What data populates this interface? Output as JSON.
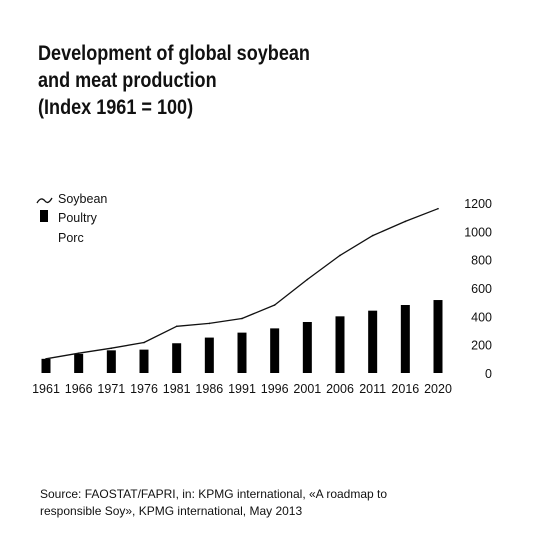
{
  "title_lines": [
    "Development of global soybean",
    "and meat production",
    "(Index 1961 = 100)"
  ],
  "source_lines": [
    "Source: FAOSTAT/FAPRI, in: KPMG international, «A roadmap to",
    "responsible Soy», KPMG international, May 2013"
  ],
  "legend": [
    {
      "label": "Soybean",
      "symbol": "line"
    },
    {
      "label": "Poultry",
      "symbol": "bar"
    },
    {
      "label": "Porc",
      "symbol": "none"
    }
  ],
  "colors": {
    "line": "#111111",
    "bar": "#000000",
    "text": "#111111",
    "background": "#ffffff"
  },
  "chart_data": {
    "type": "bar",
    "categories": [
      "1961",
      "1966",
      "1971",
      "1976",
      "1981",
      "1986",
      "1991",
      "1996",
      "2001",
      "2006",
      "2011",
      "2016",
      "2020"
    ],
    "series": [
      {
        "name": "Soybean",
        "type": "line",
        "values": [
          100,
          140,
          175,
          215,
          330,
          350,
          385,
          480,
          660,
          830,
          970,
          1070,
          1160
        ]
      },
      {
        "name": "Poultry",
        "type": "bar",
        "values": [
          100,
          135,
          160,
          165,
          210,
          250,
          285,
          315,
          360,
          400,
          440,
          480,
          515
        ]
      }
    ],
    "ylim": [
      0,
      1200
    ],
    "yticks": [
      "0",
      "200",
      "400",
      "600",
      "800",
      "1000",
      "1200"
    ],
    "y_axis_side": "right",
    "grid": false,
    "legend_position": "top-left"
  }
}
